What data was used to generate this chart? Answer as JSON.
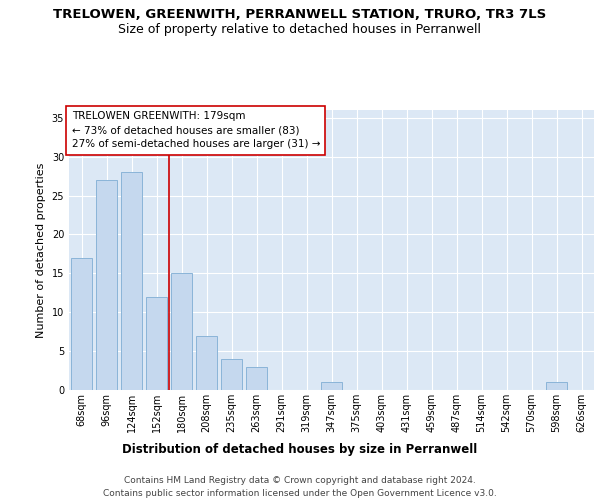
{
  "title": "TRELOWEN, GREENWITH, PERRANWELL STATION, TRURO, TR3 7LS",
  "subtitle": "Size of property relative to detached houses in Perranwell",
  "xlabel": "Distribution of detached houses by size in Perranwell",
  "ylabel": "Number of detached properties",
  "categories": [
    "68sqm",
    "96sqm",
    "124sqm",
    "152sqm",
    "180sqm",
    "208sqm",
    "235sqm",
    "263sqm",
    "291sqm",
    "319sqm",
    "347sqm",
    "375sqm",
    "403sqm",
    "431sqm",
    "459sqm",
    "487sqm",
    "514sqm",
    "542sqm",
    "570sqm",
    "598sqm",
    "626sqm"
  ],
  "values": [
    17,
    27,
    28,
    12,
    15,
    7,
    4,
    3,
    0,
    0,
    1,
    0,
    0,
    0,
    0,
    0,
    0,
    0,
    0,
    1,
    0
  ],
  "bar_color": "#c5d8ee",
  "bar_edge_color": "#8ab4d8",
  "vline_x_idx": 4,
  "vline_color": "#cc0000",
  "ylim": [
    0,
    36
  ],
  "yticks": [
    0,
    5,
    10,
    15,
    20,
    25,
    30,
    35
  ],
  "annotation_text": "TRELOWEN GREENWITH: 179sqm\n← 73% of detached houses are smaller (83)\n27% of semi-detached houses are larger (31) →",
  "annotation_box_color": "white",
  "annotation_box_edge": "#cc0000",
  "footer_text": "Contains HM Land Registry data © Crown copyright and database right 2024.\nContains public sector information licensed under the Open Government Licence v3.0.",
  "background_color": "#dce8f5",
  "grid_color": "white",
  "title_fontsize": 9.5,
  "subtitle_fontsize": 9,
  "xlabel_fontsize": 8.5,
  "ylabel_fontsize": 8,
  "tick_fontsize": 7,
  "annotation_fontsize": 7.5,
  "footer_fontsize": 6.5
}
